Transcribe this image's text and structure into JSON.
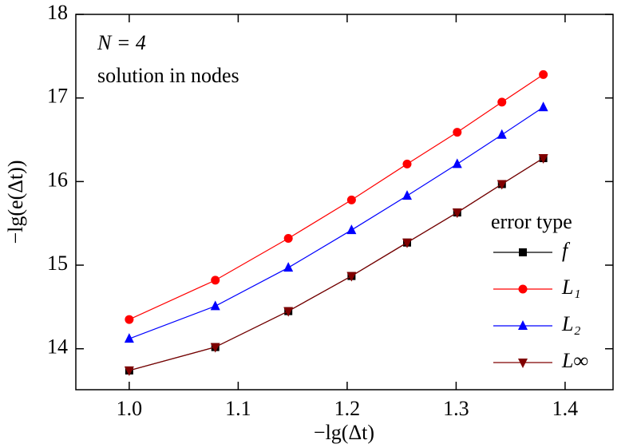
{
  "chart_data": {
    "type": "line",
    "xlabel": "−lg(Δt)",
    "ylabel": "−lg(e(Δt))",
    "annotations": [
      "N = 4",
      "solution in nodes"
    ],
    "legend_title": "error type",
    "legend_position": "right",
    "x": [
      1.0,
      1.079,
      1.146,
      1.204,
      1.255,
      1.301,
      1.342,
      1.38
    ],
    "series": [
      {
        "name": "f",
        "color": "#000000",
        "marker": "square",
        "values": [
          13.74,
          14.02,
          14.45,
          14.87,
          15.27,
          15.63,
          15.97,
          16.28
        ]
      },
      {
        "name": "L₁",
        "color": "#ff0000",
        "marker": "circle",
        "values": [
          14.35,
          14.82,
          15.32,
          15.78,
          16.21,
          16.59,
          16.95,
          17.28
        ]
      },
      {
        "name": "L₂",
        "color": "#0000ff",
        "marker": "triangle-up",
        "values": [
          14.12,
          14.51,
          14.97,
          15.42,
          15.83,
          16.21,
          16.56,
          16.89
        ]
      },
      {
        "name": "L∞",
        "color": "#800000",
        "marker": "triangle-down",
        "values": [
          13.74,
          14.02,
          14.45,
          14.87,
          15.27,
          15.63,
          15.97,
          16.28
        ]
      }
    ],
    "xlim": [
      0.951,
      1.444
    ],
    "ylim": [
      13.51,
      18
    ],
    "xticks": [
      {
        "value": 1.0,
        "label": "1.0"
      },
      1.1,
      1.2,
      1.3,
      {
        "value": 1.4,
        "label": "1.4"
      }
    ],
    "yticks": [
      14,
      15,
      16,
      17,
      18
    ]
  }
}
